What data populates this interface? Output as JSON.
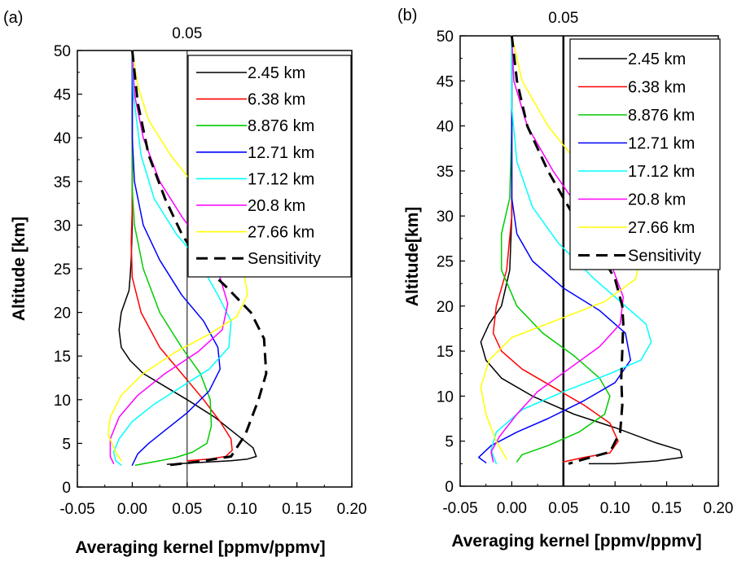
{
  "chart_data": [
    {
      "type": "line",
      "panel_label": "(a)",
      "ref_line_label": "0.05",
      "ref_line_x": 0.05,
      "xlabel": "Averaging  kernel [ppmv/ppmv]",
      "ylabel": "Altitude [km]",
      "xlim": [
        -0.05,
        0.2
      ],
      "ylim": [
        0,
        50
      ],
      "xticks": [
        "-0.05",
        "0.00",
        "0.05",
        "0.10",
        "0.15",
        "0.20"
      ],
      "yticks": [
        "0",
        "5",
        "10",
        "15",
        "20",
        "25",
        "30",
        "35",
        "40",
        "45",
        "50"
      ],
      "legend_position": "top-right",
      "series": [
        {
          "name": "2.45 km",
          "color": "#000000",
          "dash": false,
          "x": [
            0.0,
            0.0,
            0.0,
            -0.001,
            -0.002,
            -0.003,
            -0.01,
            -0.012,
            -0.01,
            -0.002,
            0.01,
            0.03,
            0.05,
            0.075,
            0.095,
            0.11,
            0.113,
            0.105,
            0.09,
            0.06,
            0.032
          ],
          "y": [
            50,
            40,
            30,
            26,
            24,
            22.5,
            20,
            18,
            16,
            14.5,
            13,
            11.5,
            10,
            8,
            6,
            4.5,
            3.5,
            3.2,
            3.0,
            2.8,
            2.6
          ]
        },
        {
          "name": "6.38 km",
          "color": "#ff0000",
          "dash": false,
          "x": [
            0.0,
            0.0,
            0.0,
            -0.001,
            0.0,
            0.008,
            0.025,
            0.045,
            0.065,
            0.08,
            0.09,
            0.091,
            0.085,
            0.07,
            0.05
          ],
          "y": [
            50,
            40,
            32,
            28,
            24,
            20,
            16,
            13,
            10,
            7.5,
            5.5,
            4.2,
            3.5,
            3.2,
            3.0
          ]
        },
        {
          "name": "8.876 km",
          "color": "#00cc00",
          "dash": false,
          "x": [
            0.0,
            0.0,
            0.0,
            0.002,
            0.01,
            0.025,
            0.045,
            0.062,
            0.071,
            0.072,
            0.068,
            0.055,
            0.04,
            0.025,
            0.003
          ],
          "y": [
            50,
            40,
            34,
            30,
            25,
            20,
            16,
            13,
            10,
            7,
            5,
            4,
            3.4,
            3.0,
            2.5
          ]
        },
        {
          "name": "12.71 km",
          "color": "#0000ff",
          "dash": false,
          "x": [
            0.0,
            0.0,
            0.002,
            0.01,
            0.025,
            0.045,
            0.065,
            0.078,
            0.08,
            0.07,
            0.05,
            0.03,
            0.015,
            0.005,
            0.0
          ],
          "y": [
            50,
            40,
            35,
            30,
            26,
            22,
            19,
            16,
            13.5,
            11,
            8.5,
            6.5,
            5,
            3.8,
            2.5
          ]
        },
        {
          "name": "17.12 km",
          "color": "#00ffff",
          "dash": false,
          "x": [
            0.0,
            0.001,
            0.008,
            0.02,
            0.04,
            0.06,
            0.078,
            0.09,
            0.088,
            0.07,
            0.045,
            0.02,
            0.0,
            -0.012,
            -0.017,
            -0.015,
            -0.01
          ],
          "y": [
            50,
            45,
            38,
            33,
            29,
            26,
            22,
            19,
            16,
            13.5,
            11.5,
            9.5,
            7.5,
            5.5,
            4,
            3,
            2.5
          ]
        },
        {
          "name": "20.8 km",
          "color": "#ff00ff",
          "dash": false,
          "x": [
            0.0,
            0.002,
            0.01,
            0.025,
            0.045,
            0.065,
            0.08,
            0.087,
            0.082,
            0.06,
            0.03,
            0.005,
            -0.012,
            -0.02,
            -0.02,
            -0.017
          ],
          "y": [
            50,
            45,
            40,
            35,
            31,
            27.5,
            24,
            21,
            18,
            15.5,
            13,
            10.5,
            8,
            5.5,
            3.5,
            2.7
          ]
        },
        {
          "name": "27.66 km",
          "color": "#ffff00",
          "dash": false,
          "x": [
            0.0,
            0.005,
            0.015,
            0.035,
            0.06,
            0.085,
            0.1,
            0.105,
            0.095,
            0.07,
            0.04,
            0.01,
            -0.01,
            -0.02,
            -0.022,
            -0.015,
            -0.01
          ],
          "y": [
            50,
            46,
            42,
            38,
            34,
            30,
            26,
            22,
            19.5,
            17.5,
            15.5,
            13,
            10.5,
            8,
            6,
            4,
            3
          ]
        },
        {
          "name": "Sensitivity",
          "color": "#000000",
          "dash": true,
          "x": [
            0.0,
            0.005,
            0.015,
            0.03,
            0.045,
            0.06,
            0.085,
            0.108,
            0.12,
            0.122,
            0.115,
            0.103,
            0.09,
            0.06,
            0.033
          ],
          "y": [
            50,
            44,
            38,
            33,
            29,
            26,
            23,
            20,
            17,
            13,
            10,
            6,
            3.5,
            2.9,
            2.5
          ]
        }
      ]
    },
    {
      "type": "line",
      "panel_label": "(b)",
      "ref_line_label": "0.05",
      "ref_line_x": 0.05,
      "xlabel": "Averaging  kernel [ppmv/ppmv]",
      "ylabel": "Altitude[km]",
      "xlim": [
        -0.05,
        0.2
      ],
      "ylim": [
        0,
        50
      ],
      "xticks": [
        "-0.05",
        "0.00",
        "0.05",
        "0.10",
        "0.15",
        "0.20"
      ],
      "yticks": [
        "0",
        "5",
        "10",
        "15",
        "20",
        "25",
        "30",
        "35",
        "40",
        "45",
        "50"
      ],
      "legend_position": "top-right",
      "series": [
        {
          "name": "2.45 km",
          "color": "#000000",
          "dash": false,
          "x": [
            0.0,
            0.0,
            0.0,
            -0.002,
            -0.01,
            -0.022,
            -0.03,
            -0.025,
            -0.01,
            0.02,
            0.06,
            0.1,
            0.14,
            0.163,
            0.165,
            0.14,
            0.1,
            0.075
          ],
          "y": [
            50,
            40,
            30,
            24,
            20,
            18,
            16,
            14,
            12,
            10,
            8,
            6.5,
            4.8,
            4,
            3.2,
            2.8,
            2.5,
            2.5
          ]
        },
        {
          "name": "6.38 km",
          "color": "#ff0000",
          "dash": false,
          "x": [
            0.0,
            0.0,
            0.0,
            -0.005,
            -0.015,
            -0.018,
            -0.01,
            0.01,
            0.04,
            0.07,
            0.095,
            0.103,
            0.095,
            0.07,
            0.05
          ],
          "y": [
            50,
            40,
            30,
            24,
            20,
            17,
            15,
            13,
            11,
            9,
            7,
            5,
            3.7,
            3.2,
            2.7
          ]
        },
        {
          "name": "8.876 km",
          "color": "#00cc00",
          "dash": false,
          "x": [
            0.0,
            0.0,
            -0.002,
            -0.01,
            -0.01,
            0.005,
            0.03,
            0.06,
            0.085,
            0.095,
            0.09,
            0.065,
            0.035,
            0.01,
            0.005
          ],
          "y": [
            50,
            40,
            32,
            28,
            24,
            20,
            17,
            14.5,
            12,
            10,
            8,
            6,
            4.5,
            3.5,
            2.7
          ]
        },
        {
          "name": "12.71 km",
          "color": "#0000ff",
          "dash": false,
          "x": [
            0.0,
            0.0,
            0.0,
            0.005,
            0.02,
            0.05,
            0.085,
            0.11,
            0.115,
            0.1,
            0.07,
            0.035,
            0.005,
            -0.02,
            -0.032,
            -0.025
          ],
          "y": [
            50,
            40,
            32,
            28,
            25,
            22,
            19.5,
            17,
            14,
            11.5,
            9.5,
            7.5,
            6,
            4.5,
            3.2,
            2.6
          ]
        },
        {
          "name": "17.12 km",
          "color": "#00ffff",
          "dash": false,
          "x": [
            0.0,
            0.0,
            0.005,
            0.02,
            0.045,
            0.08,
            0.11,
            0.13,
            0.135,
            0.125,
            0.095,
            0.05,
            0.01,
            -0.015,
            -0.02,
            -0.015
          ],
          "y": [
            50,
            42,
            36,
            31,
            27,
            23,
            20,
            18,
            16,
            14,
            12.5,
            10.5,
            8.5,
            6,
            4,
            2.5
          ]
        },
        {
          "name": "20.8 km",
          "color": "#ff00ff",
          "dash": false,
          "x": [
            0.0,
            0.002,
            0.015,
            0.04,
            0.07,
            0.095,
            0.108,
            0.105,
            0.085,
            0.055,
            0.025,
            0.005,
            -0.012,
            -0.02,
            -0.018
          ],
          "y": [
            50,
            45,
            40,
            35,
            30,
            25,
            21,
            18,
            15.5,
            13,
            10.5,
            8,
            5.5,
            3.8,
            2.7
          ]
        },
        {
          "name": "27.66 km",
          "color": "#ffff00",
          "dash": false,
          "x": [
            0.0,
            0.01,
            0.035,
            0.07,
            0.105,
            0.125,
            0.12,
            0.09,
            0.045,
            0.0,
            -0.022,
            -0.03,
            -0.025,
            -0.015,
            -0.005
          ],
          "y": [
            50,
            45,
            40,
            35,
            30,
            26,
            23,
            20.5,
            18.5,
            16.5,
            14,
            11,
            8,
            5,
            3
          ]
        },
        {
          "name": "Sensitivity",
          "color": "#000000",
          "dash": true,
          "x": [
            0.0,
            0.005,
            0.015,
            0.035,
            0.06,
            0.085,
            0.1,
            0.107,
            0.108,
            0.107,
            0.106,
            0.107,
            0.105,
            0.095,
            0.07,
            0.055
          ],
          "y": [
            50,
            45,
            40,
            35,
            30,
            26,
            23,
            20,
            18,
            15,
            12,
            9,
            6,
            3.8,
            3.0,
            2.5
          ]
        }
      ]
    }
  ]
}
